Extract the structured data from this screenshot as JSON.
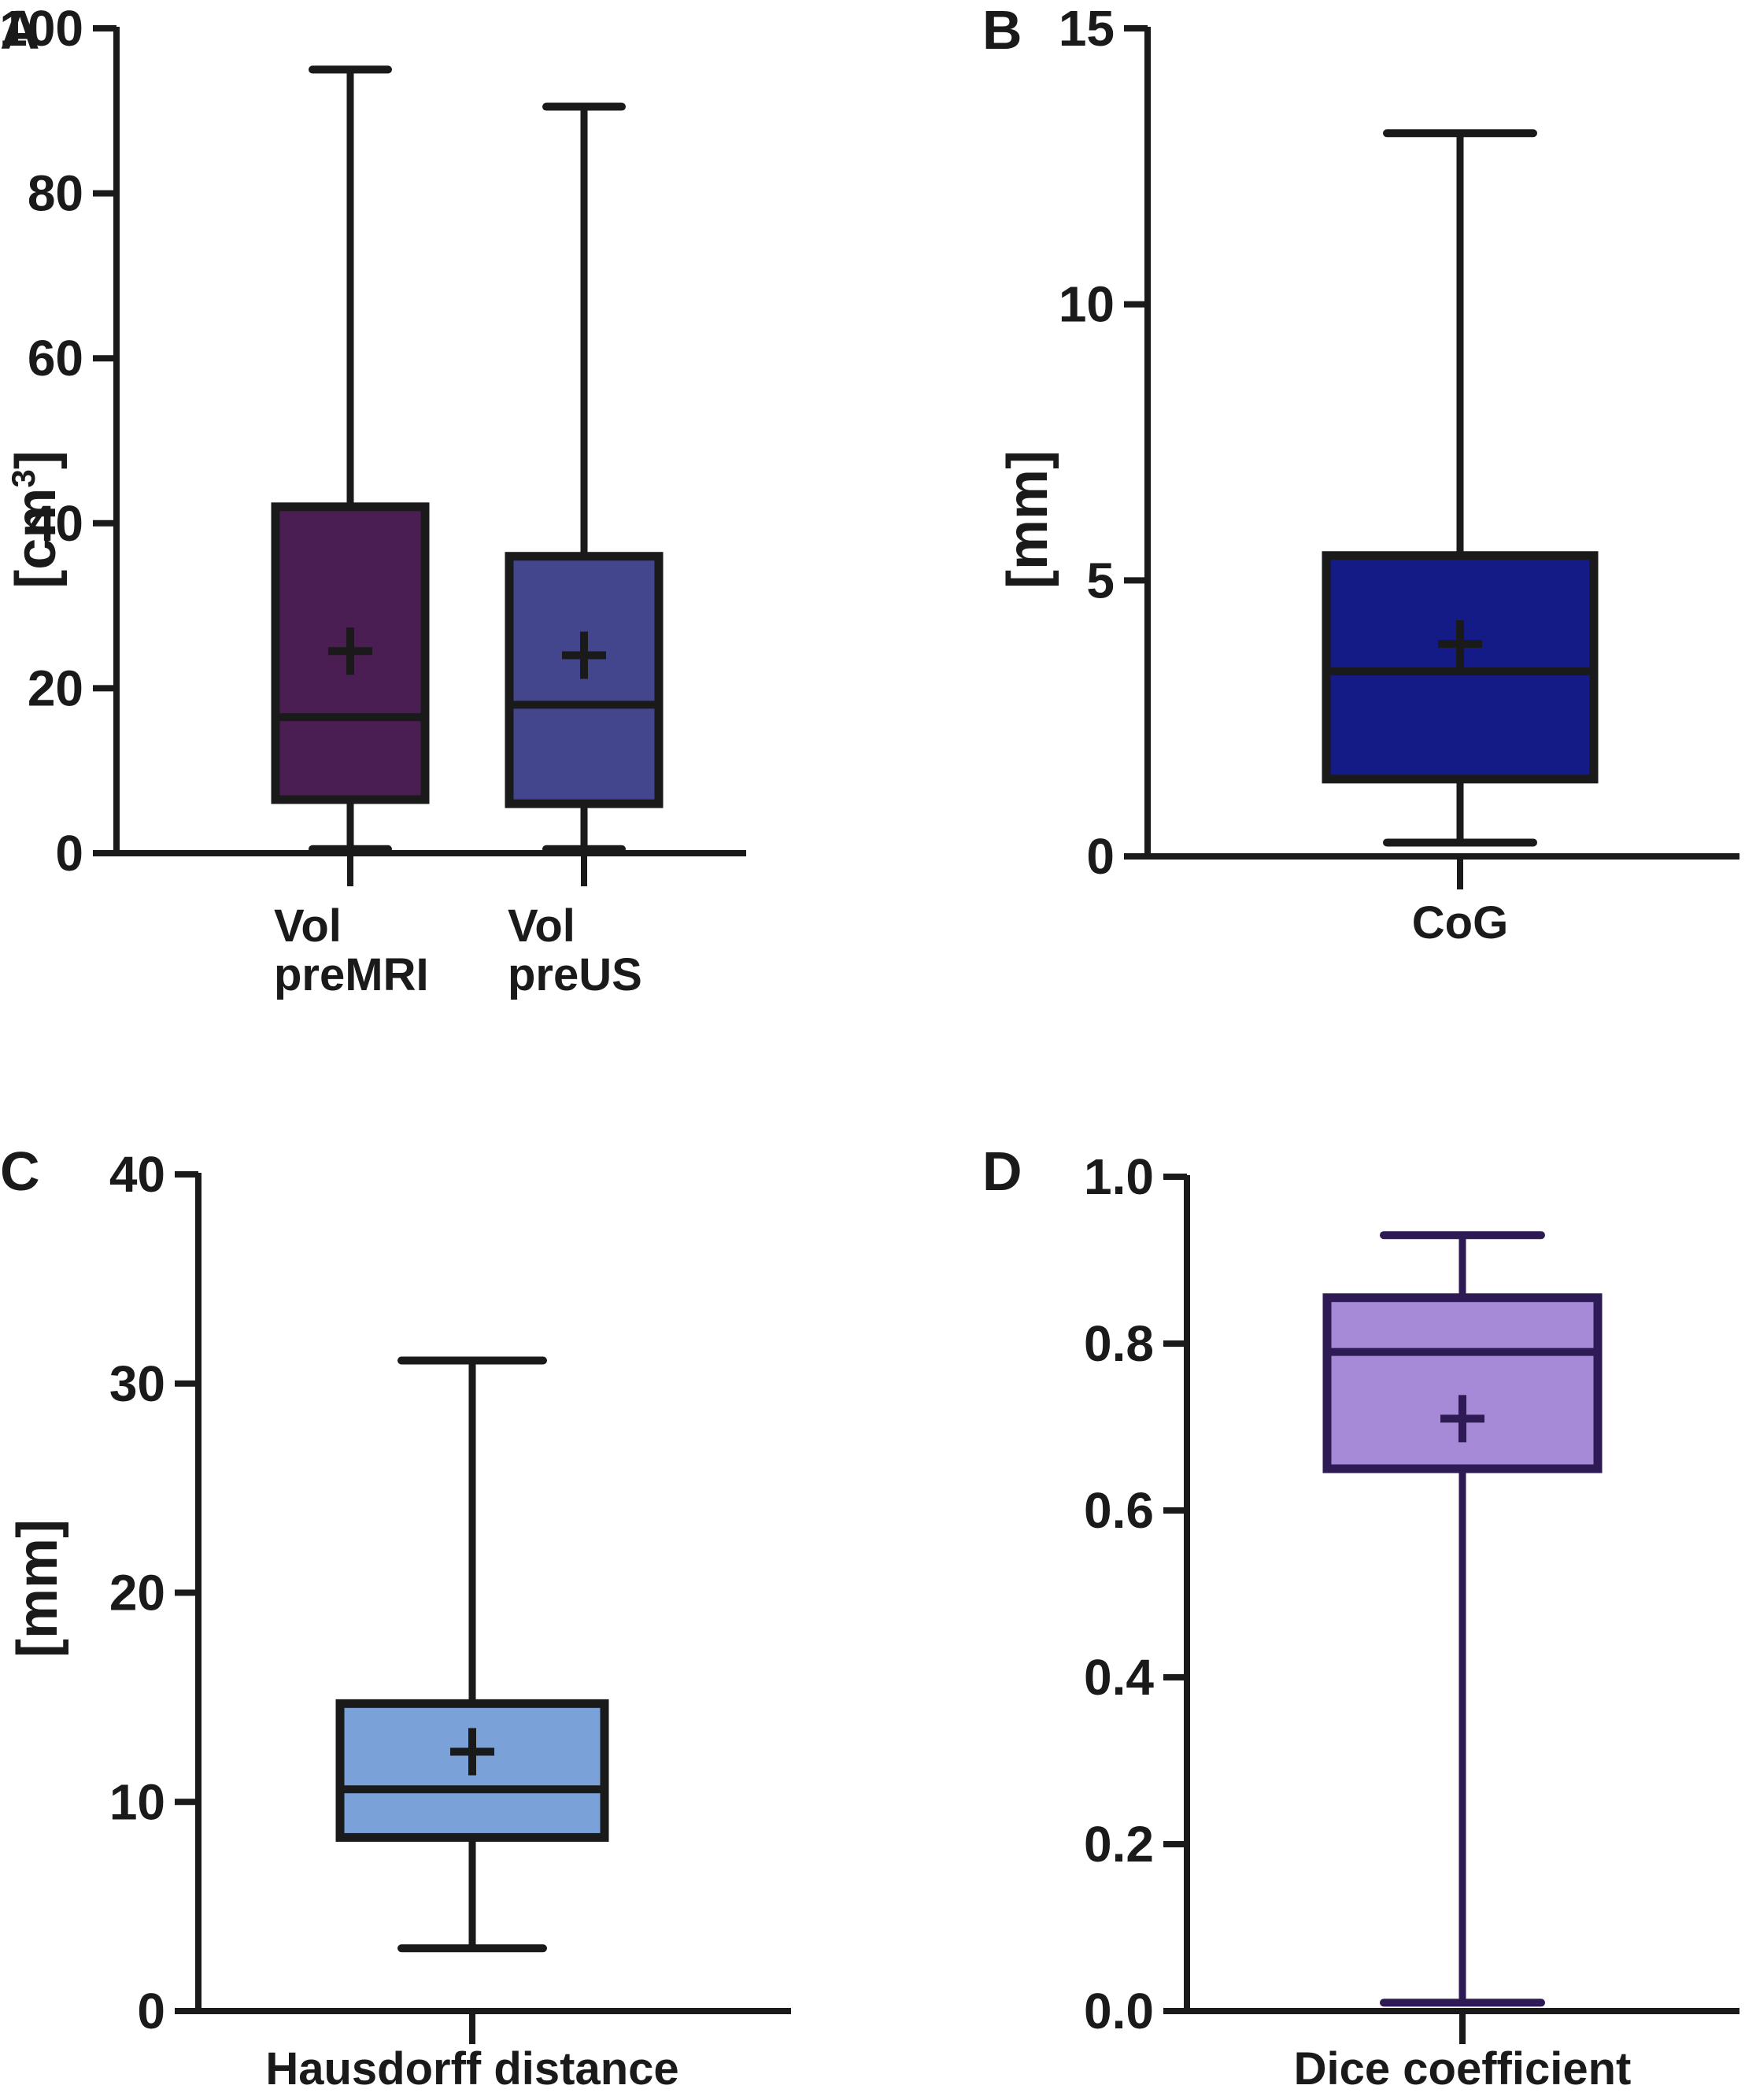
{
  "chart_data": [
    {
      "panel": "A",
      "type": "boxplot",
      "ylabel": "[cm",
      "ylabel_sup": "3",
      "ylabel_end": "]",
      "ylim": [
        0,
        100
      ],
      "yticks": [
        0,
        20,
        40,
        60,
        80,
        100
      ],
      "categories": [
        {
          "lines": [
            "Vol",
            "preMRI"
          ],
          "min": 0.5,
          "q1": 6.5,
          "median": 16.5,
          "q3": 42,
          "max": 95,
          "mean": 24.5,
          "color": "#4a1d53"
        },
        {
          "lines": [
            "Vol",
            "preUS"
          ],
          "min": 0.5,
          "q1": 6,
          "median": 18,
          "q3": 36,
          "max": 90.5,
          "mean": 24,
          "color": "#43468c"
        }
      ]
    },
    {
      "panel": "B",
      "type": "boxplot",
      "ylabel": "[mm]",
      "ylim": [
        0,
        15
      ],
      "yticks": [
        0,
        5,
        10,
        15
      ],
      "categories": [
        {
          "lines": [
            "CoG"
          ],
          "min": 0.25,
          "q1": 1.4,
          "median": 3.35,
          "q3": 5.45,
          "max": 13.1,
          "mean": 3.85,
          "color": "#141a86"
        }
      ]
    },
    {
      "panel": "C",
      "type": "boxplot",
      "ylabel": "[mm]",
      "ylim": [
        0,
        40
      ],
      "yticks": [
        0,
        10,
        20,
        30,
        40
      ],
      "categories": [
        {
          "lines": [
            "Hausdorff distance"
          ],
          "min": 3,
          "q1": 8.3,
          "median": 10.6,
          "q3": 14.7,
          "max": 31.1,
          "mean": 12.4,
          "color": "#7ba1d9"
        }
      ]
    },
    {
      "panel": "D",
      "type": "boxplot",
      "ylabel": "",
      "ylim": [
        0,
        1
      ],
      "yticks": [
        "0.0",
        "0.2",
        "0.4",
        "0.6",
        "0.8",
        "1.0"
      ],
      "categories": [
        {
          "lines": [
            "Dice coefficient"
          ],
          "min": 0.01,
          "q1": 0.65,
          "median": 0.79,
          "q3": 0.855,
          "max": 0.93,
          "mean": 0.71,
          "color": "#a68ad8",
          "stroke": "#2e1a55"
        }
      ]
    }
  ]
}
